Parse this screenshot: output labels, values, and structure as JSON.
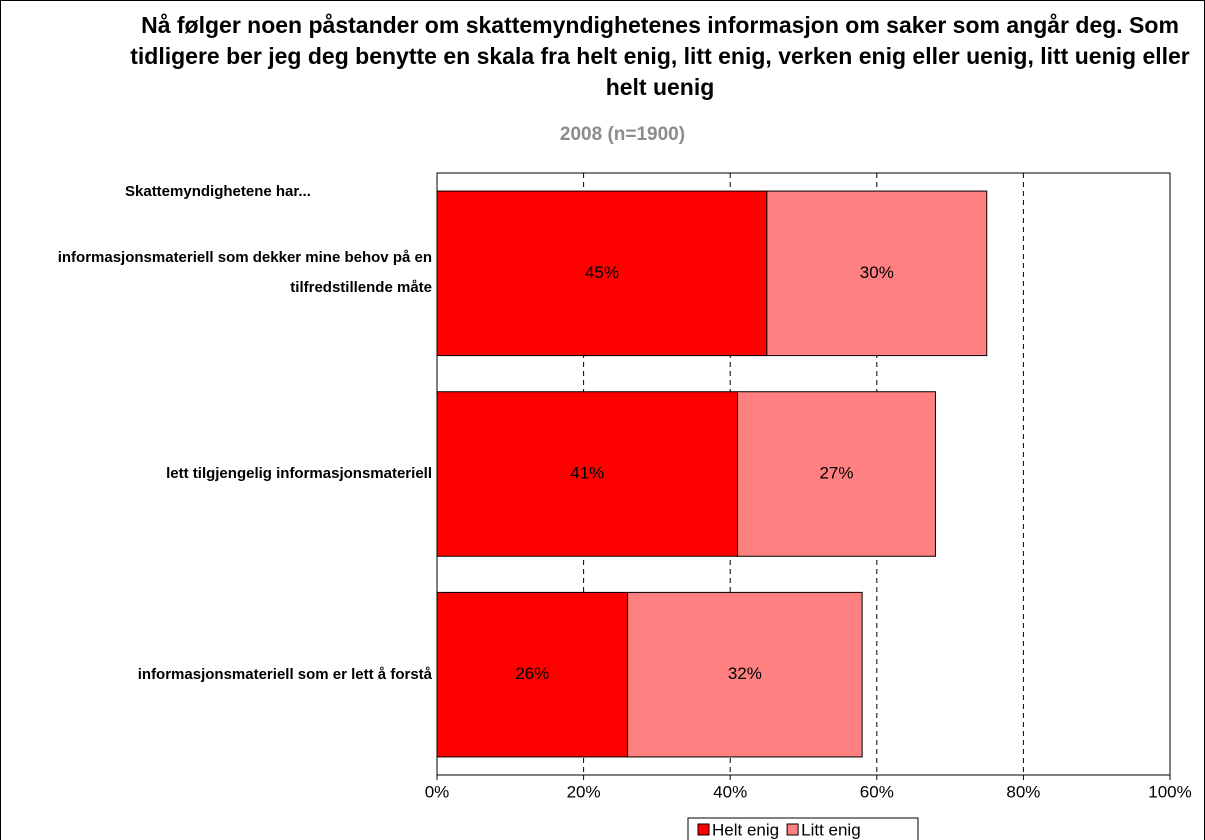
{
  "chart_data": {
    "type": "stacked_barh",
    "title": "Nå følger noen påstander om skattemyndighetenes informasjon om saker som angår deg. Som tidligere ber jeg deg benytte en skala fra helt enig, litt enig, verken enig eller uenig, litt uenig eller helt uenig",
    "subtitle": "2008 (n=1900)",
    "annotation": "Skattemyndighetene har...",
    "categories": [
      "informasjonsmateriell som dekker mine behov på en tilfredstillende måte",
      "lett tilgjengelig informasjonsmateriell",
      "informasjonsmateriell som er lett å forstå"
    ],
    "series": [
      {
        "name": "Helt enig",
        "color": "#ff0000",
        "values": [
          45,
          41,
          26
        ],
        "value_labels": [
          "45%",
          "41%",
          "26%"
        ]
      },
      {
        "name": "Litt enig",
        "color": "#ff8080",
        "values": [
          30,
          27,
          32
        ],
        "value_labels": [
          "30%",
          "27%",
          "32%"
        ]
      }
    ],
    "xlim": [
      0,
      100
    ],
    "xticks": [
      {
        "value": 0,
        "label": "0%"
      },
      {
        "value": 20,
        "label": "20%"
      },
      {
        "value": 40,
        "label": "40%"
      },
      {
        "value": 60,
        "label": "60%"
      },
      {
        "value": 80,
        "label": "80%"
      },
      {
        "value": 100,
        "label": "100%"
      }
    ],
    "grid": true,
    "legend": "bottom"
  }
}
